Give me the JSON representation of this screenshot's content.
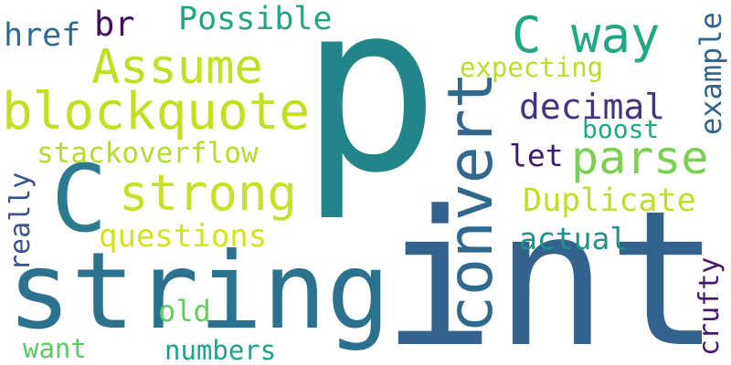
{
  "words": {
    "p": "p",
    "int": "int",
    "string": "string",
    "convert": "convert",
    "c": "C",
    "strong": "strong",
    "blockquote": "blockquote",
    "assume": "Assume",
    "c_way": "C way",
    "parse": "parse",
    "duplicate": "Duplicate",
    "possible": "Possible",
    "decimal": "decimal",
    "questions": "questions",
    "stackoverflow": "stackoverflow",
    "expecting": "expecting",
    "example": "example",
    "href": "href",
    "br": "br",
    "boost": "boost",
    "let": "let",
    "actual": "actual",
    "really": "really",
    "crufty": "crufty",
    "old": "old",
    "numbers": "numbers",
    "want": "want"
  },
  "colors": {
    "p": "#23848a",
    "int": "#33638d",
    "string": "#2c728e",
    "convert": "#31688e",
    "c": "#2c7a8e",
    "strong": "#c9e02a",
    "blockquote": "#c4df22",
    "assume": "#c1df24",
    "c_way": "#22a785",
    "parse": "#7ad151",
    "duplicate": "#bddf26",
    "possible": "#21a685",
    "decimal": "#46327e",
    "questions": "#d3e31a",
    "stackoverflow": "#b4dc2c",
    "expecting": "#b7de2a",
    "example": "#33658d",
    "href": "#2e6a8e",
    "br": "#440d62",
    "boost": "#22a784",
    "let": "#3e1a6c",
    "actual": "#21918c",
    "really": "#3b528b",
    "crufty": "#481769",
    "old": "#64cb5f",
    "numbers": "#1fa088",
    "want": "#5ec962"
  }
}
